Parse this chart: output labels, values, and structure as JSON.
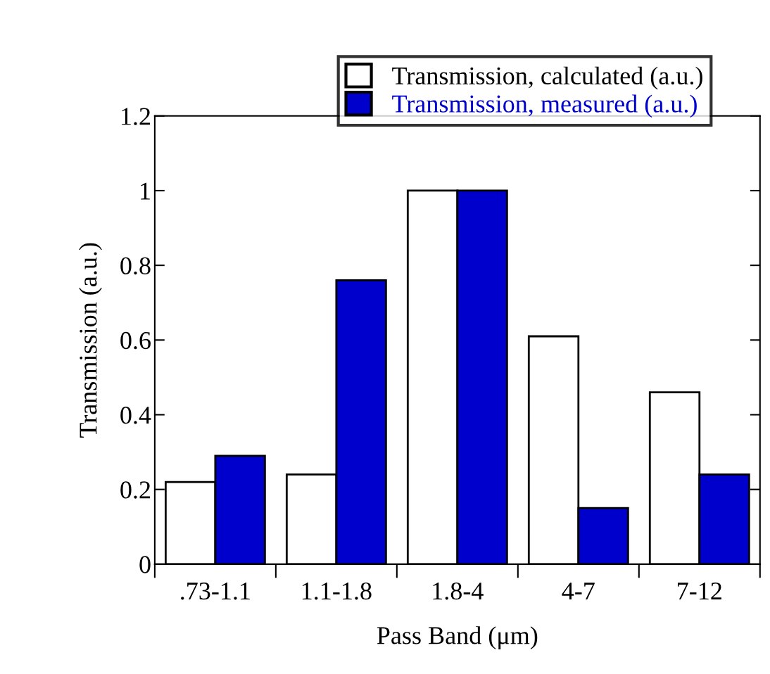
{
  "chart_data": {
    "type": "bar",
    "xlabel": "Pass Band (μm)",
    "ylabel": "Transmission (a.u.)",
    "categories": [
      ".73-1.1",
      "1.1-1.8",
      "1.8-4",
      "4-7",
      "7-12"
    ],
    "series": [
      {
        "name": "Transmission, calculated (a.u.)",
        "color": "#ffffff",
        "values": [
          0.22,
          0.24,
          1.0,
          0.61,
          0.46
        ]
      },
      {
        "name": "Transmission, measured (a.u.)",
        "color": "#0000cc",
        "values": [
          0.29,
          0.76,
          1.0,
          0.15,
          0.24
        ]
      }
    ],
    "ylim": [
      0,
      1.2
    ],
    "yticks": [
      0,
      0.2,
      0.4,
      0.6,
      0.8,
      1,
      1.2
    ],
    "grid": false,
    "legend": "top right"
  }
}
